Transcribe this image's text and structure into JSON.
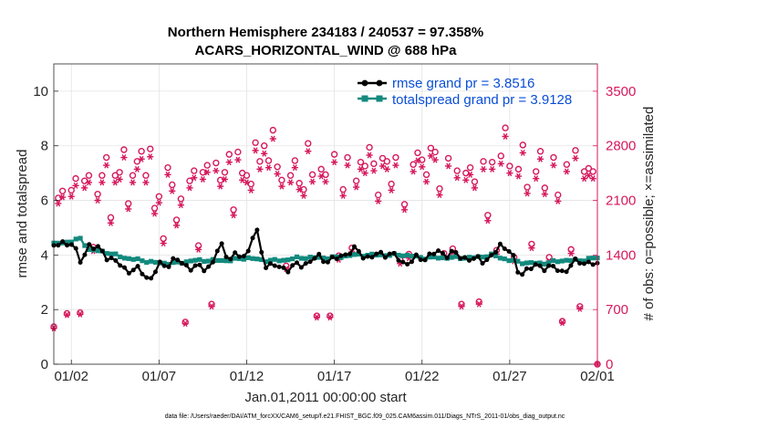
{
  "colors": {
    "rmse": "#000000",
    "spread": "#138a7e",
    "obs": "#d6185c",
    "legend_text": "#0a4ed6",
    "grid": "#e3e3e3",
    "axis": "#262626"
  },
  "chart_data": {
    "type": "line",
    "title": "Northern Hemisphere 234183 / 240537 = 97.358%",
    "subtitle": "ACARS_HORIZONTAL_WIND @ 688 hPa",
    "xlabel": "Jan.01,2011 00:00:00 start",
    "ylabel": "rmse and totalspread",
    "y2label": "# of obs: o=possible; ×=assimilated",
    "footnote": "data file: /Users/raeder/DAI/ATM_forcXX/CAM6_setup/f.e21.FHIST_BGC.f09_025.CAM6assim.011/Diags_NTrS_2011-01/obs_diag_output.nc",
    "x_ticks": [
      "01/02",
      "01/07",
      "01/12",
      "01/17",
      "01/22",
      "01/27",
      "02/01"
    ],
    "x_tick_days": [
      1,
      6,
      11,
      16,
      21,
      26,
      31
    ],
    "xlim_days": [
      0,
      31
    ],
    "ylim": [
      0,
      11
    ],
    "y_ticks": [
      "0",
      "2",
      "4",
      "6",
      "8",
      "10"
    ],
    "y_tick_values": [
      0,
      2,
      4,
      6,
      8,
      10
    ],
    "y2lim": [
      0,
      3850
    ],
    "y2_ticks": [
      "0",
      "700",
      "1400",
      "2100",
      "2800",
      "3500"
    ],
    "y2_tick_values": [
      0,
      700,
      1400,
      2100,
      2800,
      3500
    ],
    "grid": true,
    "legend_position": "top-right",
    "legend": [
      "rmse grand pr = 3.8516",
      "totalspread grand pr = 3.9128"
    ],
    "series": [
      {
        "name": "rmse grand pr = 3.8516",
        "anchor_days": [
          0,
          1,
          1.5,
          2,
          3,
          4,
          5,
          5.5,
          6,
          7,
          8,
          9,
          9.5,
          10,
          11,
          11.5,
          12,
          13,
          14,
          15,
          16,
          17,
          18,
          19,
          20,
          21,
          22,
          23,
          24,
          25,
          25.5,
          26,
          26.5,
          27,
          28,
          29,
          30,
          31
        ],
        "anchor_values": [
          4.3,
          4.5,
          3.7,
          4.4,
          4.0,
          3.5,
          3.4,
          3.1,
          3.6,
          3.8,
          3.5,
          3.6,
          4.4,
          3.9,
          4.0,
          5.0,
          3.7,
          3.5,
          3.6,
          3.9,
          3.8,
          4.2,
          3.9,
          4.1,
          3.7,
          3.9,
          4.1,
          4.0,
          3.8,
          3.9,
          4.4,
          4.2,
          3.3,
          3.5,
          3.6,
          3.4,
          3.8,
          3.6
        ]
      },
      {
        "name": "totalspread grand pr = 3.9128",
        "anchor_days": [
          0,
          1,
          1.5,
          2,
          3,
          4,
          5,
          6,
          7,
          8,
          9,
          10,
          11,
          12,
          13,
          14,
          15,
          16,
          17,
          18,
          19,
          20,
          21,
          22,
          23,
          24,
          25,
          26,
          27,
          28,
          29,
          30,
          31
        ],
        "anchor_values": [
          4.4,
          4.5,
          4.6,
          4.2,
          4.1,
          3.9,
          3.8,
          3.7,
          3.7,
          3.8,
          3.8,
          3.8,
          3.9,
          3.8,
          3.8,
          3.9,
          3.9,
          3.9,
          4.0,
          4.0,
          4.0,
          4.0,
          3.9,
          3.9,
          3.9,
          3.9,
          4.0,
          3.8,
          3.7,
          3.7,
          3.8,
          3.8,
          3.9
        ]
      },
      {
        "name": "obs possible",
        "values": [
          480,
          2130,
          2220,
          650,
          2230,
          2380,
          660,
          2350,
          2420,
          1500,
          2180,
          2420,
          2650,
          1880,
          2420,
          2460,
          2750,
          2060,
          2420,
          2600,
          2730,
          2420,
          2760,
          2000,
          2150,
          1610,
          2520,
          2300,
          1850,
          2120,
          540,
          2350,
          2480,
          1520,
          2460,
          2550,
          770,
          2580,
          2360,
          2460,
          2690,
          1980,
          2720,
          2450,
          2420,
          2310,
          2840,
          2600,
          2800,
          2610,
          3000,
          2530,
          2360,
          1260,
          2420,
          2610,
          2320,
          2240,
          2830,
          2430,
          620,
          2500,
          2430,
          620,
          2690,
          1390,
          2240,
          2650,
          1490,
          2350,
          2590,
          2540,
          2780,
          2570,
          2170,
          2640,
          2600,
          2310,
          2650,
          1340,
          2050,
          1410,
          2560,
          2710,
          2620,
          2430,
          2770,
          2720,
          2250,
          1420,
          2640,
          1480,
          2480,
          770,
          2450,
          2520,
          2340,
          800,
          2600,
          1910,
          2590,
          1460,
          2670,
          3030,
          2540,
          1370,
          2500,
          2810,
          2270,
          1540,
          2470,
          2730,
          2260,
          1370,
          2650,
          2170,
          550,
          2560,
          1470,
          2740,
          740,
          2470,
          2510,
          2470,
          0
        ]
      },
      {
        "name": "obs assimilated",
        "values": [
          460,
          2060,
          2140,
          630,
          2150,
          2290,
          640,
          2260,
          2330,
          1450,
          2100,
          2330,
          2550,
          1810,
          2330,
          2370,
          2650,
          1990,
          2330,
          2500,
          2630,
          2330,
          2660,
          1930,
          2070,
          1550,
          2430,
          2220,
          1780,
          2040,
          520,
          2260,
          2390,
          1470,
          2370,
          2460,
          740,
          2480,
          2280,
          2370,
          2590,
          1910,
          2620,
          2360,
          2330,
          2230,
          2740,
          2500,
          2700,
          2520,
          2890,
          2440,
          2280,
          1220,
          2330,
          2520,
          2240,
          2160,
          2730,
          2340,
          600,
          2410,
          2340,
          600,
          2590,
          1340,
          2160,
          2550,
          1440,
          2270,
          2500,
          2450,
          2680,
          2480,
          2090,
          2540,
          2500,
          2230,
          2550,
          1290,
          1980,
          1360,
          2470,
          2610,
          2530,
          2340,
          2670,
          2620,
          2170,
          1370,
          2540,
          1430,
          2390,
          740,
          2360,
          2430,
          2260,
          770,
          2500,
          1840,
          2500,
          1410,
          2570,
          2920,
          2450,
          1320,
          2410,
          2710,
          2190,
          1490,
          2380,
          2630,
          2180,
          1320,
          2550,
          2090,
          530,
          2470,
          1420,
          2640,
          710,
          2380,
          2420,
          2380,
          0
        ]
      }
    ]
  }
}
